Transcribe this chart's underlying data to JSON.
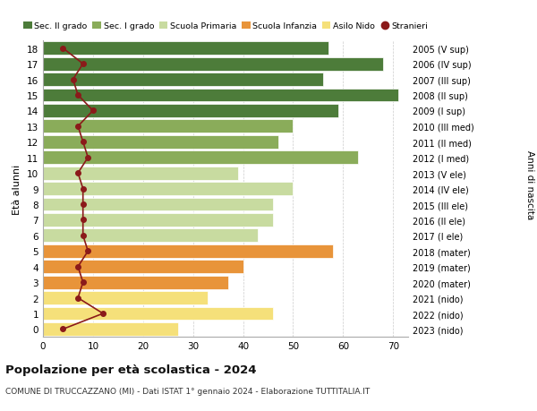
{
  "ages": [
    0,
    1,
    2,
    3,
    4,
    5,
    6,
    7,
    8,
    9,
    10,
    11,
    12,
    13,
    14,
    15,
    16,
    17,
    18
  ],
  "right_labels": [
    "2023 (nido)",
    "2022 (nido)",
    "2021 (nido)",
    "2020 (mater)",
    "2019 (mater)",
    "2018 (mater)",
    "2017 (I ele)",
    "2016 (II ele)",
    "2015 (III ele)",
    "2014 (IV ele)",
    "2013 (V ele)",
    "2012 (I med)",
    "2011 (II med)",
    "2010 (III med)",
    "2009 (I sup)",
    "2008 (II sup)",
    "2007 (III sup)",
    "2006 (IV sup)",
    "2005 (V sup)"
  ],
  "bar_values": [
    27,
    46,
    33,
    37,
    40,
    58,
    43,
    46,
    46,
    50,
    39,
    63,
    47,
    50,
    59,
    71,
    56,
    68,
    57
  ],
  "stranieri_values": [
    4,
    12,
    7,
    8,
    7,
    9,
    8,
    8,
    8,
    8,
    7,
    9,
    8,
    7,
    10,
    7,
    6,
    8,
    4
  ],
  "bar_colors": [
    "#f5e07a",
    "#f5e07a",
    "#f5e07a",
    "#e8943a",
    "#e8943a",
    "#e8943a",
    "#c8dba0",
    "#c8dba0",
    "#c8dba0",
    "#c8dba0",
    "#c8dba0",
    "#8aac5a",
    "#8aac5a",
    "#8aac5a",
    "#4d7c3a",
    "#4d7c3a",
    "#4d7c3a",
    "#4d7c3a",
    "#4d7c3a"
  ],
  "legend_labels": [
    "Sec. II grado",
    "Sec. I grado",
    "Scuola Primaria",
    "Scuola Infanzia",
    "Asilo Nido",
    "Stranieri"
  ],
  "legend_colors": [
    "#4d7c3a",
    "#8aac5a",
    "#c8dba0",
    "#e8943a",
    "#f5e07a",
    "#8b1a1a"
  ],
  "title": "Popolazione per età scolastica - 2024",
  "subtitle": "COMUNE DI TRUCCAZZANO (MI) - Dati ISTAT 1° gennaio 2024 - Elaborazione TUTTITALIA.IT",
  "ylabel_left": "Età alunni",
  "ylabel_right": "Anni di nascita",
  "xlim": [
    0,
    73
  ],
  "xticks": [
    0,
    10,
    20,
    30,
    40,
    50,
    60,
    70
  ],
  "bg_color": "#ffffff",
  "grid_color": "#cccccc",
  "stranieri_line_color": "#8b1a1a",
  "stranieri_dot_color": "#8b1a1a"
}
